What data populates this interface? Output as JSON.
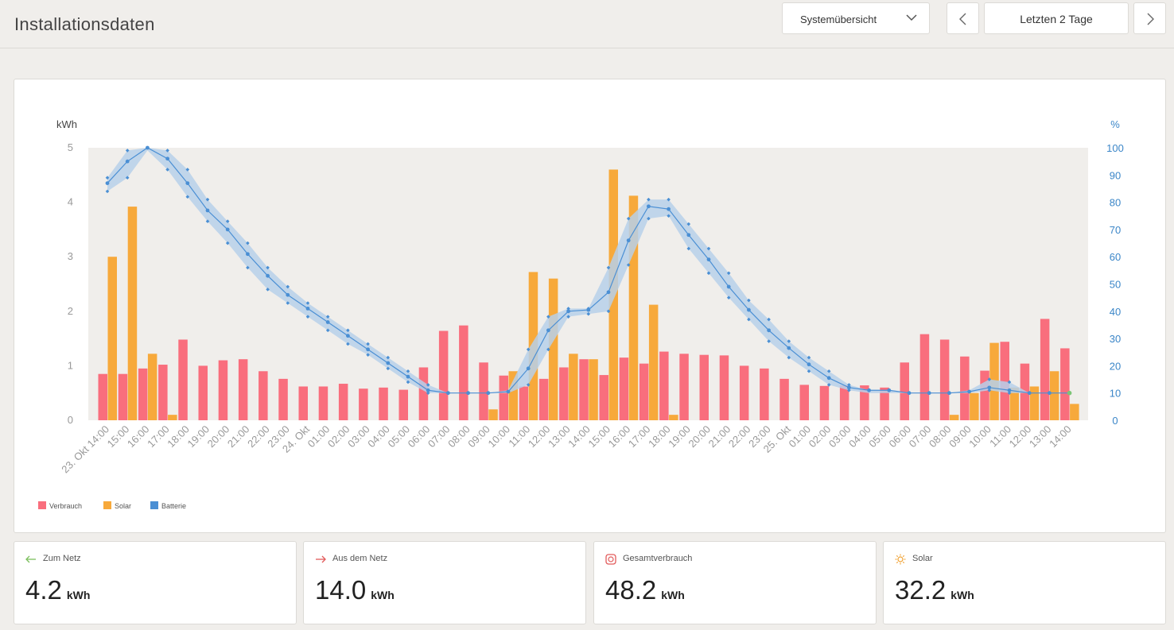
{
  "header": {
    "title": "Installationsdaten",
    "view_select": "Systemübersicht",
    "range_label": "Letzten 2 Tage"
  },
  "colors": {
    "consumption": "#f96e7d",
    "solar": "#f7a93b",
    "battery": "#4a8fd4",
    "battery_band": "#b7d0ea",
    "plot_bg": "#f0eeeb"
  },
  "chart_data": {
    "type": "bar",
    "y_left_label": "kWh",
    "y_right_label": "%",
    "y_left_ticks": [
      "0",
      "1",
      "2",
      "3",
      "4",
      "5"
    ],
    "y_right_ticks": [
      "0",
      "10",
      "20",
      "30",
      "40",
      "50",
      "60",
      "70",
      "80",
      "90",
      "100"
    ],
    "ylim_left": [
      0,
      5
    ],
    "ylim_right": [
      0,
      100
    ],
    "categories": [
      "23. Okt 14:00",
      "15:00",
      "16:00",
      "17:00",
      "18:00",
      "19:00",
      "20:00",
      "21:00",
      "22:00",
      "23:00",
      "24. Okt",
      "01:00",
      "02:00",
      "03:00",
      "04:00",
      "05:00",
      "06:00",
      "07:00",
      "08:00",
      "09:00",
      "10:00",
      "11:00",
      "12:00",
      "13:00",
      "14:00",
      "15:00",
      "16:00",
      "17:00",
      "18:00",
      "19:00",
      "20:00",
      "21:00",
      "22:00",
      "23:00",
      "25. Okt",
      "01:00",
      "02:00",
      "03:00",
      "04:00",
      "05:00",
      "06:00",
      "07:00",
      "08:00",
      "09:00",
      "10:00",
      "11:00",
      "12:00",
      "13:00",
      "14:00"
    ],
    "series": [
      {
        "name": "Verbrauch",
        "kind": "bar",
        "values": [
          0.85,
          0.85,
          0.95,
          1.02,
          1.48,
          1.0,
          1.1,
          1.12,
          0.9,
          0.76,
          0.62,
          0.62,
          0.67,
          0.58,
          0.6,
          0.56,
          0.97,
          1.64,
          1.74,
          1.06,
          0.82,
          0.62,
          0.76,
          0.97,
          1.12,
          0.83,
          1.15,
          1.04,
          1.26,
          1.22,
          1.2,
          1.19,
          1.0,
          0.95,
          0.76,
          0.65,
          0.63,
          0.64,
          0.64,
          0.6,
          1.06,
          1.58,
          1.48,
          1.17,
          0.91,
          1.44,
          1.04,
          1.86,
          1.32
        ]
      },
      {
        "name": "Solar",
        "kind": "bar",
        "values": [
          3.0,
          3.92,
          1.22,
          0.1,
          0,
          0,
          0,
          0,
          0,
          0,
          0,
          0,
          0,
          0,
          0,
          0,
          0,
          0,
          0,
          0.2,
          0.9,
          2.72,
          2.6,
          1.22,
          1.12,
          4.6,
          4.12,
          2.12,
          0.1,
          0,
          0,
          0,
          0,
          0,
          0,
          0,
          0,
          0,
          0,
          0,
          0,
          0,
          0.1,
          0.5,
          1.42,
          0.6,
          0.62,
          0.9,
          0.3
        ]
      },
      {
        "name": "Batterie",
        "kind": "line",
        "axis": "right",
        "values": [
          87,
          95,
          100,
          96,
          87,
          77,
          70,
          61,
          53,
          46,
          41,
          36,
          31,
          26,
          21,
          16,
          11,
          10,
          10,
          10,
          10.5,
          19,
          33,
          40,
          40.5,
          47,
          66,
          78.5,
          77.5,
          68,
          59,
          49,
          40.5,
          33,
          26.5,
          20.5,
          15.5,
          12,
          11,
          11,
          10,
          10,
          10,
          10.5,
          12,
          11,
          10,
          10,
          10
        ],
        "band_high": [
          89,
          99,
          100,
          99,
          92,
          81,
          73,
          65,
          56,
          49,
          43,
          38,
          33,
          28,
          23,
          18,
          13,
          10,
          10,
          10,
          11,
          26,
          38,
          41,
          41,
          56,
          74,
          81,
          81,
          72,
          63,
          54,
          44,
          37,
          29,
          23,
          18,
          13,
          11,
          11,
          10,
          10,
          10,
          11,
          15,
          14,
          10,
          10,
          10
        ],
        "band_low": [
          84,
          89,
          99,
          92,
          82,
          73,
          65,
          56,
          48,
          43,
          38,
          33,
          28,
          24,
          19,
          14,
          10,
          10,
          10,
          10,
          10,
          13,
          26,
          38,
          39,
          40,
          57,
          74,
          75,
          63,
          54,
          45,
          37,
          29,
          23,
          18,
          13,
          11,
          10,
          10,
          10,
          10,
          10,
          10,
          11,
          10,
          10,
          10,
          10
        ]
      }
    ],
    "legend_position": "bottom-left",
    "grid": false
  },
  "legend": [
    {
      "label": "Verbrauch",
      "color": "#f96e7d"
    },
    {
      "label": "Solar",
      "color": "#f7a93b"
    },
    {
      "label": "Batterie",
      "color": "#4a8fd4"
    }
  ],
  "stats": [
    {
      "label": "Zum Netz",
      "value": "4.2",
      "unit": "kWh",
      "icon": "arrow-left-icon"
    },
    {
      "label": "Aus dem Netz",
      "value": "14.0",
      "unit": "kWh",
      "icon": "arrow-right-icon"
    },
    {
      "label": "Gesamtverbrauch",
      "value": "48.2",
      "unit": "kWh",
      "icon": "consumption-icon"
    },
    {
      "label": "Solar",
      "value": "32.2",
      "unit": "kWh",
      "icon": "sun-icon"
    }
  ]
}
